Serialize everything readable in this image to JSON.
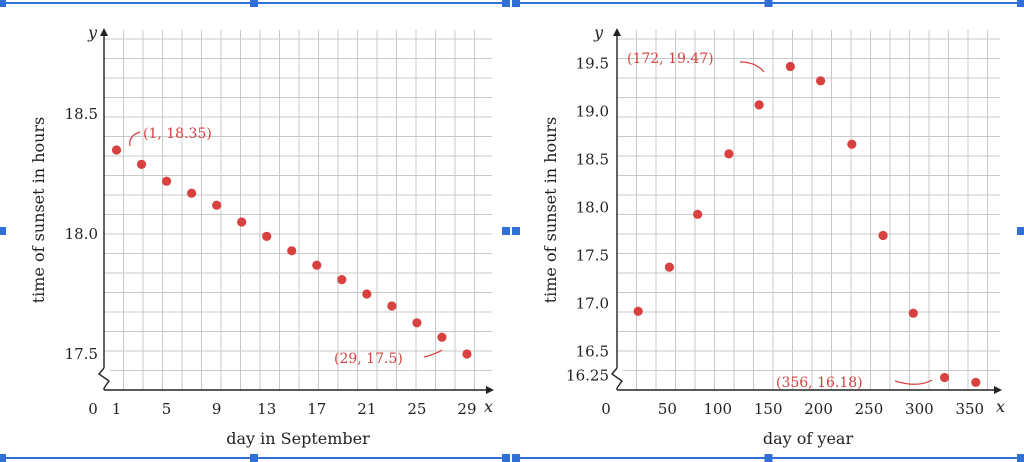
{
  "chart_data": [
    {
      "type": "scatter",
      "xlabel": "day in September",
      "ylabel": "time of sunset in hours",
      "x_var": "x",
      "y_var": "y",
      "origin_label": "0",
      "x_ticks": [
        1,
        5,
        9,
        13,
        17,
        21,
        25,
        29
      ],
      "y_ticks": [
        17.5,
        18.0,
        18.5
      ],
      "y_tick_labels": [
        "17.5",
        "18.0",
        "18.5"
      ],
      "xlim": [
        0,
        31
      ],
      "ylim": [
        17.35,
        18.85
      ],
      "grid": true,
      "series": [
        {
          "x": [
            1,
            3,
            5,
            7,
            9,
            11,
            13,
            15,
            17,
            19,
            21,
            23,
            25,
            27,
            29
          ],
          "y": [
            18.35,
            18.29,
            18.22,
            18.17,
            18.12,
            18.05,
            17.99,
            17.93,
            17.87,
            17.81,
            17.75,
            17.7,
            17.63,
            17.57,
            17.5
          ]
        }
      ],
      "annotations": [
        {
          "text": "(1, 18.35)",
          "x": 1,
          "y": 18.35
        },
        {
          "text": "(29, 17.5)",
          "x": 29,
          "y": 17.5
        }
      ],
      "axis_break": "y"
    },
    {
      "type": "scatter",
      "xlabel": "day of year",
      "ylabel": "time of sunset in hours",
      "x_var": "x",
      "y_var": "y",
      "origin_label": "0",
      "x_ticks": [
        50,
        100,
        150,
        200,
        250,
        300,
        350
      ],
      "y_ticks": [
        16.25,
        16.5,
        17.0,
        17.5,
        18.0,
        18.5,
        19.0,
        19.5
      ],
      "y_tick_labels": [
        "16.25",
        "16.5",
        "17.0",
        "17.5",
        "18.0",
        "18.5",
        "19.0",
        "19.5"
      ],
      "xlim": [
        0,
        380
      ],
      "ylim": [
        16.1,
        19.85
      ],
      "grid": true,
      "series": [
        {
          "x": [
            21,
            52,
            80,
            111,
            141,
            172,
            202,
            233,
            264,
            294,
            325,
            356
          ],
          "y": [
            16.92,
            17.38,
            17.93,
            18.56,
            19.07,
            19.47,
            19.32,
            18.66,
            17.71,
            16.9,
            16.23,
            16.18
          ]
        }
      ],
      "annotations": [
        {
          "text": "(172, 19.47)",
          "x": 172,
          "y": 19.47
        },
        {
          "text": "(356, 16.18)",
          "x": 356,
          "y": 16.18
        }
      ],
      "axis_break": "y"
    }
  ]
}
